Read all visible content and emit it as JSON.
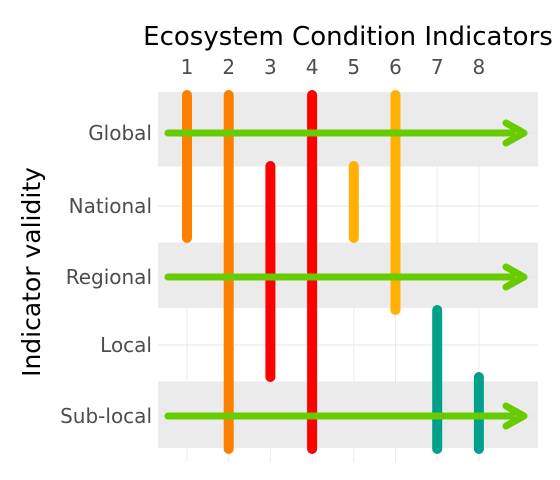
{
  "chart_data": {
    "type": "range-bar",
    "title": "Ecosystem Condition Indicators",
    "xlabel": "",
    "ylabel": "Indicator validity",
    "categories": [
      "1",
      "2",
      "3",
      "4",
      "5",
      "6",
      "7",
      "8"
    ],
    "levels": [
      "Global",
      "National",
      "Regional",
      "Local",
      "Sub-local"
    ],
    "shaded_levels": [
      "Global",
      "Regional",
      "Sub-local"
    ],
    "ranges": [
      {
        "indicator": "1",
        "from": "Global",
        "to": "National",
        "color": "#FF8000"
      },
      {
        "indicator": "2",
        "from": "Global",
        "to": "Sub-local",
        "color": "#FF8000"
      },
      {
        "indicator": "3",
        "from": "National",
        "to": "Local",
        "color": "#FF0000"
      },
      {
        "indicator": "4",
        "from": "Global",
        "to": "Sub-local",
        "color": "#FF0000"
      },
      {
        "indicator": "5",
        "from": "National",
        "to": "National",
        "color": "#FFB000"
      },
      {
        "indicator": "6",
        "from": "Global",
        "to": "Regional",
        "color": "#FFB000"
      },
      {
        "indicator": "7",
        "from": "Local",
        "to": "Sub-local",
        "color": "#00A08A"
      },
      {
        "indicator": "8",
        "from": "Sub-local",
        "to": "Sub-local",
        "color": "#00A08A"
      }
    ],
    "arrows": [
      {
        "level": "Global",
        "color": "#66CC00"
      },
      {
        "level": "Regional",
        "color": "#66CC00"
      },
      {
        "level": "Sub-local",
        "color": "#66CC00"
      }
    ],
    "grid": true
  }
}
